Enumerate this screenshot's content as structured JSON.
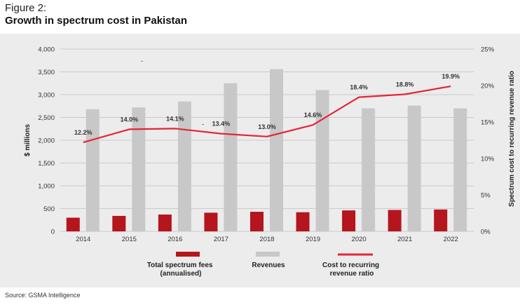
{
  "figure_label": "Figure 2:",
  "title": "Growth in spectrum cost in Pakistan",
  "source": "Source: GSMA Intelligence",
  "stray_marks": [
    "-",
    "-"
  ],
  "colors": {
    "fees": "#b5151d",
    "revenues": "#c8c8c8",
    "ratio": "#e32636",
    "panel": "#ececec",
    "grid": "#a8a8a8"
  },
  "chart_data": {
    "type": "bar",
    "categories": [
      "2014",
      "2015",
      "2016",
      "2017",
      "2018",
      "2019",
      "2020",
      "2021",
      "2022"
    ],
    "series": [
      {
        "name": "Total spectrum fees (annualised)",
        "axis": "left",
        "kind": "bar",
        "values": [
          300,
          340,
          370,
          410,
          430,
          420,
          460,
          470,
          480
        ]
      },
      {
        "name": "Revenues",
        "axis": "left",
        "kind": "bar",
        "values": [
          2680,
          2720,
          2850,
          3250,
          3560,
          3100,
          2700,
          2760,
          2700
        ]
      },
      {
        "name": "Cost to recurring revenue ratio",
        "axis": "right",
        "kind": "line",
        "values": [
          12.2,
          14.0,
          14.1,
          13.4,
          13.0,
          14.6,
          18.4,
          18.8,
          19.9
        ],
        "labels": [
          "12.2%",
          "14.0%",
          "14.1%",
          "13.4%",
          "13.0%",
          "14.6%",
          "18.4%",
          "18.8%",
          "19.9%"
        ]
      }
    ],
    "left_axis": {
      "label": "$ millions",
      "ylim": [
        0,
        4000
      ],
      "ticks": [
        0,
        500,
        1000,
        1500,
        2000,
        2500,
        3000,
        3500,
        4000
      ],
      "tick_labels": [
        "0",
        "500",
        "1,000",
        "1,500",
        "2,000",
        "2,500",
        "3,000",
        "3,500",
        "4,000"
      ]
    },
    "right_axis": {
      "label": "Spectrum cost to recurring revenue ratio",
      "ylim": [
        0,
        25
      ],
      "ticks": [
        0,
        5,
        10,
        15,
        20,
        25
      ],
      "tick_labels": [
        "0%",
        "5%",
        "10%",
        "15%",
        "20%",
        "25%"
      ]
    },
    "legend": {
      "position": "bottom",
      "entries": [
        {
          "lines": [
            "Total spectrum fees",
            "(annualised)"
          ]
        },
        {
          "lines": [
            "Revenues"
          ]
        },
        {
          "lines": [
            "Cost to recurring",
            "revenue ratio"
          ]
        }
      ]
    },
    "grid": true
  }
}
